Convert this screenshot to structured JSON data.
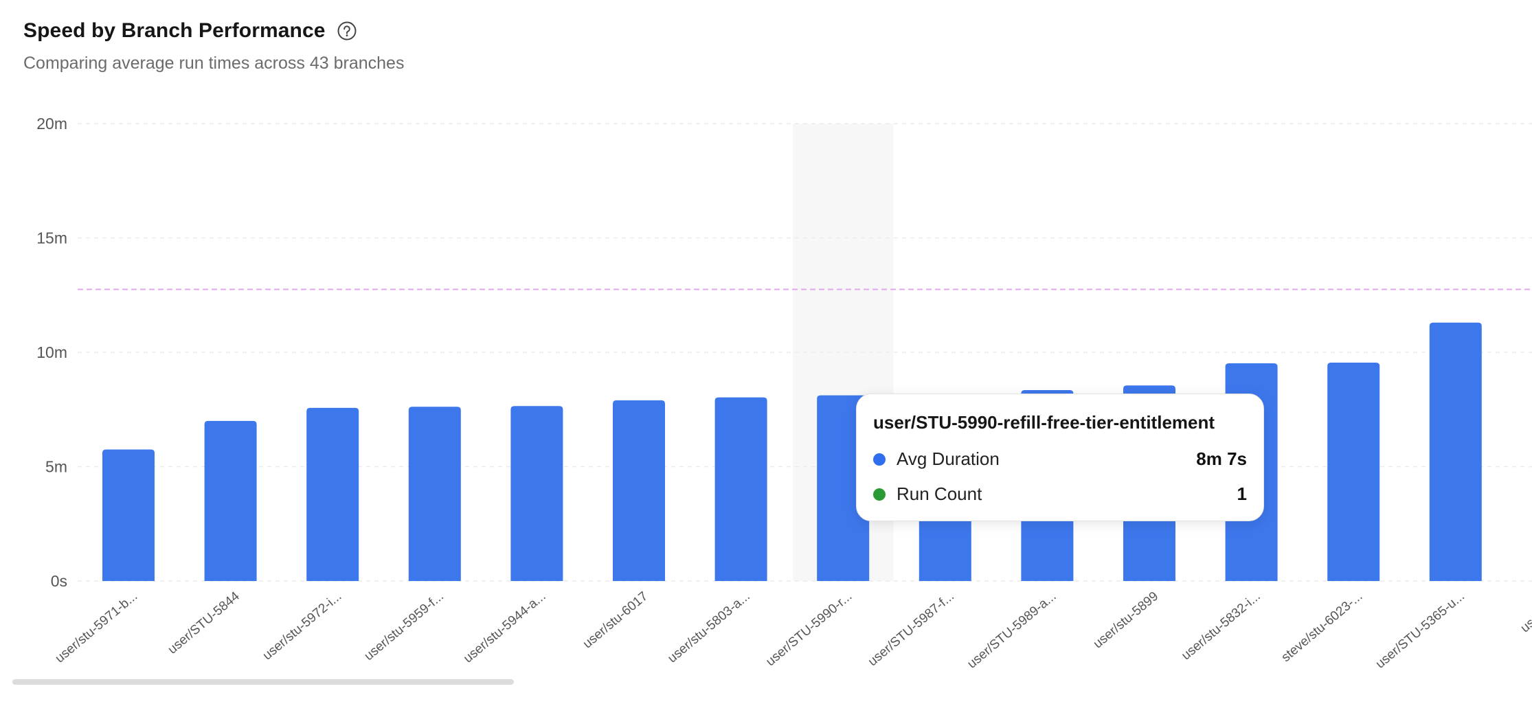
{
  "header": {
    "title": "Speed by Branch Performance",
    "subtitle": "Comparing average run times across 43 branches",
    "help_icon": "question-circle-icon"
  },
  "chart_data": {
    "type": "bar",
    "y_ticks": [
      "0s",
      "5m",
      "10m",
      "15m",
      "20m"
    ],
    "ylim": [
      0,
      20
    ],
    "y_unit": "minutes",
    "grid": true,
    "categories": [
      "user/stu-5971-b...",
      "user/STU-5844",
      "user/stu-5972-i...",
      "user/stu-5959-f...",
      "user/stu-5944-a...",
      "user/stu-6017",
      "user/stu-5803-a...",
      "user/STU-5990-r...",
      "user/STU-5987-f...",
      "user/STU-5989-a...",
      "user/stu-5899",
      "user/stu-5832-i...",
      "steve/stu-6023-...",
      "user/STU-5365-u...",
      "user/STU"
    ],
    "values": [
      5.75,
      7.0,
      7.57,
      7.62,
      7.65,
      7.9,
      8.03,
      8.12,
      8.2,
      8.35,
      8.55,
      9.52,
      9.55,
      11.3,
      null
    ],
    "reference_line": 12.75,
    "highlighted_index": 7,
    "colors": {
      "bar": "#3d77ec",
      "reference_line": "#e2a7f0",
      "highlight_band": "#f7f7f7",
      "grid": "#ebebeb",
      "tick_text": "#555555"
    }
  },
  "tooltip": {
    "title": "user/STU-5990-refill-free-tier-entitlement",
    "rows": [
      {
        "label": "Avg Duration",
        "value": "8m 7s",
        "color": "#2f6fee"
      },
      {
        "label": "Run Count",
        "value": "1",
        "color": "#2a9a35"
      }
    ]
  }
}
